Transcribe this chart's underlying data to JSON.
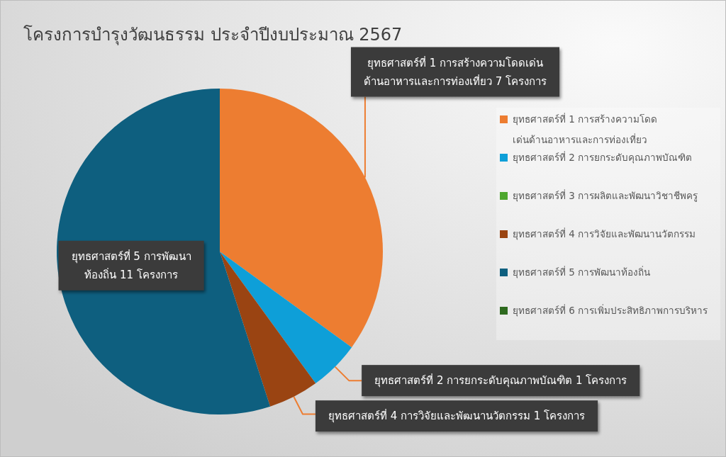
{
  "chart_data": {
    "type": "pie",
    "title": "โครงการบำรุงวัฒนธรรม ประจำปีงบประมาณ 2567",
    "categories": [
      "ยุทธศาสตร์ที่ 1 การสร้างความโดดเด่นด้านอาหารและการท่องเที่ยว",
      "ยุทธศาสตร์ที่ 2 การยกระดับคุณภาพบัณฑิต",
      "ยุทธศาสตร์ที่ 3 การผลิตและพัฒนาวิชาชีพครู",
      "ยุทธศาสตร์ที่ 4 การวิจัยและพัฒนานวัตกรรม",
      "ยุทธศาสตร์ที่ 5 การพัฒนาท้องถิ่น",
      "ยุทธศาสตร์ที่ 6 การเพิ่มประสิทธิภาพการบริหาร"
    ],
    "values": [
      7,
      1,
      0,
      1,
      11,
      0
    ],
    "colors": [
      "#ed7d31",
      "#0e9fd8",
      "#4ea72e",
      "#9a4412",
      "#0e5f7f",
      "#2e6a1f"
    ],
    "value_labels": [
      "ยุทธศาสตร์ที่ 1 การสร้างความโดดเด่นด้านอาหารและการท่องเที่ยว 7 โครงการ",
      "ยุทธศาสตร์ที่ 2 การยกระดับคุณภาพบัณฑิต 1 โครงการ",
      null,
      "ยุทธศาสตร์ที่ 4 การวิจัยและพัฒนานวัตกรรม 1 โครงการ",
      "ยุทธศาสตร์ที่ 5 การพัฒนาท้องถิ่น 11 โครงการ",
      null
    ],
    "legend": "right"
  }
}
